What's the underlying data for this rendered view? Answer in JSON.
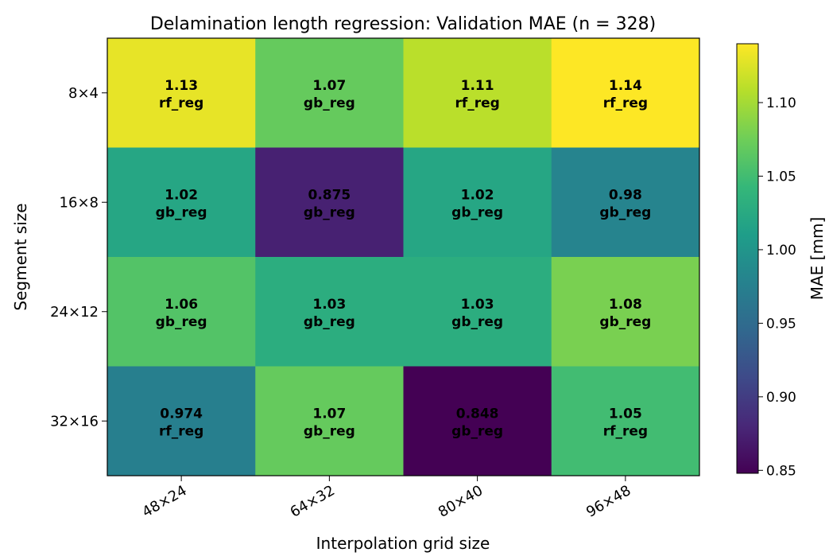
{
  "chart_data": {
    "type": "heatmap",
    "title": "Delamination length regression: Validation MAE (n = 328)",
    "xlabel": "Interpolation grid size",
    "ylabel": "Segment size",
    "x_categories": [
      "48×24",
      "64×32",
      "80×40",
      "96×48"
    ],
    "y_categories": [
      "8×4",
      "16×8",
      "24×12",
      "32×16"
    ],
    "values": [
      [
        1.13,
        1.07,
        1.11,
        1.14
      ],
      [
        1.02,
        0.875,
        1.02,
        0.98
      ],
      [
        1.06,
        1.03,
        1.03,
        1.08
      ],
      [
        0.974,
        1.07,
        0.848,
        1.05
      ]
    ],
    "value_labels": [
      [
        "1.13",
        "1.07",
        "1.11",
        "1.14"
      ],
      [
        "1.02",
        "0.875",
        "1.02",
        "0.98"
      ],
      [
        "1.06",
        "1.03",
        "1.03",
        "1.08"
      ],
      [
        "0.974",
        "1.07",
        "0.848",
        "1.05"
      ]
    ],
    "models": [
      [
        "rf_reg",
        "gb_reg",
        "rf_reg",
        "rf_reg"
      ],
      [
        "gb_reg",
        "gb_reg",
        "gb_reg",
        "gb_reg"
      ],
      [
        "gb_reg",
        "gb_reg",
        "gb_reg",
        "gb_reg"
      ],
      [
        "rf_reg",
        "gb_reg",
        "gb_reg",
        "rf_reg"
      ]
    ],
    "colormap": "viridis",
    "vmin": 0.848,
    "vmax": 1.14,
    "colorbar": {
      "label": "MAE [mm]",
      "ticks": [
        0.85,
        0.9,
        0.95,
        1.0,
        1.05,
        1.1
      ],
      "tick_labels": [
        "0.85",
        "0.90",
        "0.95",
        "1.00",
        "1.05",
        "1.10"
      ]
    },
    "grid": false
  }
}
